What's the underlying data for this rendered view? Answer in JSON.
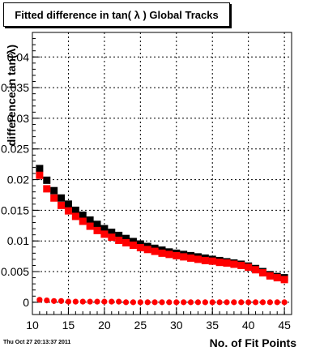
{
  "chart_data": {
    "type": "scatter",
    "title": "Fitted difference in tan( λ )  Global Tracks",
    "xlabel": "No. of Fit Points",
    "ylabel": "difference in tan(λ)",
    "xlim": [
      10,
      46
    ],
    "ylim": [
      -0.002,
      0.044
    ],
    "xticks": [
      10,
      15,
      20,
      25,
      30,
      35,
      40,
      45
    ],
    "xticklabels": [
      "10",
      "15",
      "20",
      "25",
      "30",
      "35",
      "40",
      "45"
    ],
    "yticks": [
      0,
      0.005,
      0.01,
      0.015,
      0.02,
      0.025,
      0.03,
      0.035,
      0.04
    ],
    "yticklabels": [
      "0",
      "0.005",
      "0.01",
      "0.015",
      "0.02",
      "0.025",
      "0.03",
      "0.035",
      "0.04"
    ],
    "grid": true,
    "x": [
      11,
      12,
      13,
      14,
      15,
      16,
      17,
      18,
      19,
      20,
      21,
      22,
      23,
      24,
      25,
      26,
      27,
      28,
      29,
      30,
      31,
      32,
      33,
      34,
      35,
      36,
      37,
      38,
      39,
      40,
      41,
      42,
      43,
      44,
      45
    ],
    "series": [
      {
        "marker": "square",
        "color": "#000000",
        "values": [
          0.0218,
          0.0199,
          0.0182,
          0.017,
          0.016,
          0.015,
          0.0142,
          0.0134,
          0.0127,
          0.012,
          0.0114,
          0.0109,
          0.0104,
          0.0099,
          0.0095,
          0.0091,
          0.0088,
          0.0085,
          0.0082,
          0.008,
          0.0078,
          0.0076,
          0.0074,
          0.0072,
          0.007,
          0.0068,
          0.0066,
          0.0064,
          0.0062,
          0.0059,
          0.0055,
          0.005,
          0.0045,
          0.0042,
          0.004
        ]
      },
      {
        "marker": "square",
        "color": "#ff0000",
        "values": [
          0.0207,
          0.0185,
          0.017,
          0.0158,
          0.0149,
          0.014,
          0.0132,
          0.0124,
          0.0117,
          0.0111,
          0.0106,
          0.0101,
          0.0097,
          0.0093,
          0.0089,
          0.0086,
          0.0083,
          0.008,
          0.0078,
          0.0076,
          0.0074,
          0.0072,
          0.007,
          0.0068,
          0.0067,
          0.0065,
          0.0064,
          0.0062,
          0.006,
          0.0057,
          0.0053,
          0.0048,
          0.0043,
          0.004,
          0.0037
        ]
      },
      {
        "marker": "circle",
        "color": "#ff0000",
        "values": [
          0.0004,
          0.0003,
          0.0002,
          0.0002,
          0.0001,
          0.0001,
          0.0001,
          0.0001,
          0.0001,
          0.0001,
          0.0001,
          0.0001,
          0.0,
          0.0,
          0.0,
          0.0,
          0.0,
          0.0,
          0.0,
          0.0,
          0.0,
          0.0,
          0.0,
          0.0,
          0.0,
          0.0,
          0.0,
          0.0,
          0.0,
          0.0,
          0.0,
          0.0,
          0.0,
          0.0,
          0.0
        ]
      }
    ]
  },
  "footer": {
    "timestamp": "Thu Oct 27 20:13:37 2011"
  }
}
